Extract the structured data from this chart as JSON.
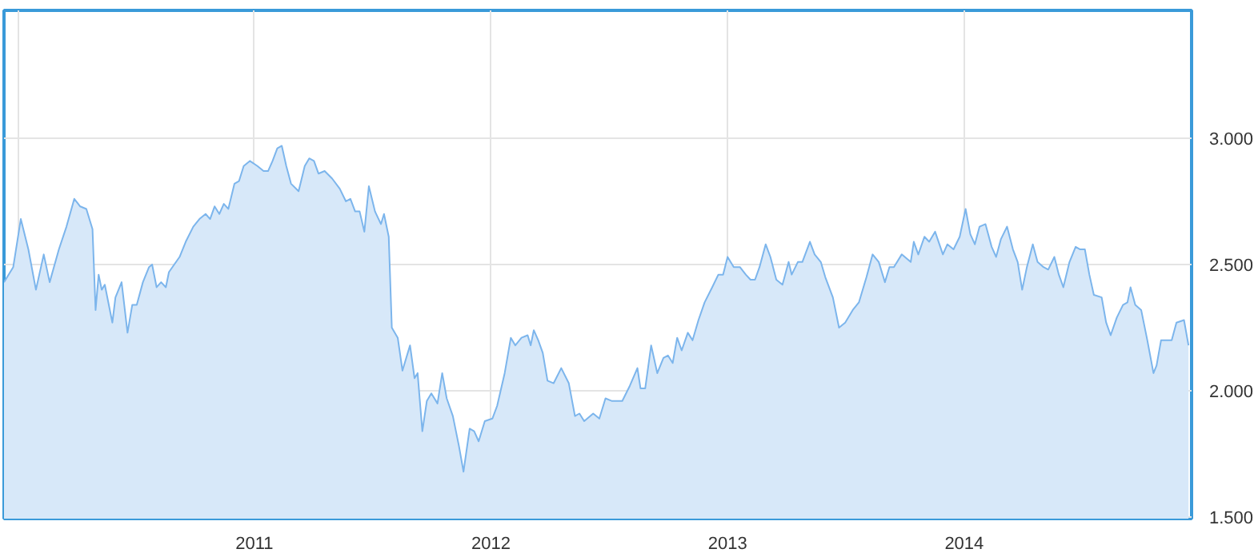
{
  "chart_data": {
    "type": "area",
    "x": [
      2009.942,
      2009.981,
      2010.013,
      2010.045,
      2010.077,
      2010.11,
      2010.135,
      2010.174,
      2010.206,
      2010.239,
      2010.264,
      2010.29,
      2010.316,
      2010.329,
      2010.342,
      2010.355,
      2010.368,
      2010.4,
      2010.413,
      2010.439,
      2010.464,
      2010.484,
      2010.503,
      2010.529,
      2010.555,
      2010.568,
      2010.587,
      2010.606,
      2010.626,
      2010.639,
      2010.684,
      2010.71,
      2010.742,
      2010.768,
      2010.794,
      2010.813,
      2010.832,
      2010.852,
      2010.871,
      2010.89,
      2010.916,
      2010.935,
      2010.955,
      2010.981,
      2011.013,
      2011.039,
      2011.058,
      2011.077,
      2011.097,
      2011.116,
      2011.135,
      2011.155,
      2011.187,
      2011.213,
      2011.232,
      2011.252,
      2011.271,
      2011.297,
      2011.329,
      2011.361,
      2011.387,
      2011.406,
      2011.426,
      2011.445,
      2011.465,
      2011.484,
      2011.51,
      2011.535,
      2011.548,
      2011.568,
      2011.581,
      2011.606,
      2011.626,
      2011.658,
      2011.677,
      2011.69,
      2011.71,
      2011.729,
      2011.748,
      2011.774,
      2011.794,
      2011.813,
      2011.839,
      2011.865,
      2011.884,
      2011.91,
      2011.929,
      2011.948,
      2011.974,
      2012.006,
      2012.026,
      2012.058,
      2012.084,
      2012.103,
      2012.129,
      2012.155,
      2012.168,
      2012.181,
      2012.2,
      2012.219,
      2012.239,
      2012.265,
      2012.297,
      2012.329,
      2012.355,
      2012.374,
      2012.394,
      2012.432,
      2012.458,
      2012.484,
      2012.51,
      2012.555,
      2012.587,
      2012.619,
      2012.632,
      2012.652,
      2012.677,
      2012.703,
      2012.729,
      2012.748,
      2012.768,
      2012.787,
      2012.806,
      2012.832,
      2012.852,
      2012.877,
      2012.903,
      2012.935,
      2012.961,
      2012.981,
      2013.0,
      2013.026,
      2013.052,
      2013.077,
      2013.097,
      2013.116,
      2013.135,
      2013.161,
      2013.181,
      2013.206,
      2013.232,
      2013.258,
      2013.271,
      2013.297,
      2013.316,
      2013.348,
      2013.368,
      2013.394,
      2013.413,
      2013.445,
      2013.471,
      2013.497,
      2013.529,
      2013.555,
      2013.587,
      2013.613,
      2013.639,
      2013.665,
      2013.684,
      2013.703,
      2013.736,
      2013.774,
      2013.787,
      2013.806,
      2013.832,
      2013.852,
      2013.877,
      2013.91,
      2013.929,
      2013.955,
      2013.981,
      2014.006,
      2014.026,
      2014.045,
      2014.065,
      2014.09,
      2014.116,
      2014.135,
      2014.155,
      2014.181,
      2014.206,
      2014.226,
      2014.245,
      2014.265,
      2014.29,
      2014.31,
      2014.335,
      2014.355,
      2014.381,
      2014.4,
      2014.419,
      2014.445,
      2014.471,
      2014.49,
      2014.51,
      2014.529,
      2014.548,
      2014.581,
      2014.6,
      2014.619,
      2014.645,
      2014.671,
      2014.69,
      2014.703,
      2014.723,
      2014.748,
      2014.774,
      2014.8,
      2014.813,
      2014.832,
      2014.858,
      2014.877,
      2014.897,
      2014.929,
      2014.948
    ],
    "series": [
      {
        "color": "#7cb5ec",
        "values": [
          2.43,
          2.49,
          2.68,
          2.56,
          2.4,
          2.54,
          2.43,
          2.56,
          2.65,
          2.76,
          2.73,
          2.72,
          2.64,
          2.32,
          2.46,
          2.4,
          2.42,
          2.27,
          2.37,
          2.43,
          2.23,
          2.34,
          2.34,
          2.43,
          2.49,
          2.5,
          2.41,
          2.43,
          2.41,
          2.47,
          2.53,
          2.59,
          2.65,
          2.68,
          2.7,
          2.68,
          2.73,
          2.7,
          2.74,
          2.72,
          2.82,
          2.83,
          2.89,
          2.91,
          2.89,
          2.87,
          2.87,
          2.91,
          2.96,
          2.97,
          2.89,
          2.82,
          2.79,
          2.89,
          2.92,
          2.91,
          2.86,
          2.87,
          2.84,
          2.8,
          2.75,
          2.76,
          2.71,
          2.71,
          2.63,
          2.81,
          2.71,
          2.66,
          2.7,
          2.61,
          2.25,
          2.21,
          2.08,
          2.18,
          2.05,
          2.07,
          1.84,
          1.96,
          1.99,
          1.95,
          2.07,
          1.97,
          1.9,
          1.78,
          1.68,
          1.85,
          1.84,
          1.8,
          1.88,
          1.89,
          1.94,
          2.07,
          2.21,
          2.18,
          2.21,
          2.22,
          2.18,
          2.24,
          2.2,
          2.15,
          2.04,
          2.03,
          2.09,
          2.03,
          1.9,
          1.91,
          1.88,
          1.91,
          1.89,
          1.97,
          1.96,
          1.96,
          2.02,
          2.09,
          2.01,
          2.01,
          2.18,
          2.07,
          2.13,
          2.14,
          2.11,
          2.21,
          2.16,
          2.23,
          2.2,
          2.28,
          2.35,
          2.41,
          2.46,
          2.46,
          2.53,
          2.49,
          2.49,
          2.46,
          2.44,
          2.44,
          2.49,
          2.58,
          2.53,
          2.44,
          2.42,
          2.51,
          2.46,
          2.51,
          2.51,
          2.59,
          2.54,
          2.51,
          2.45,
          2.37,
          2.25,
          2.27,
          2.32,
          2.35,
          2.45,
          2.54,
          2.51,
          2.43,
          2.49,
          2.49,
          2.54,
          2.51,
          2.59,
          2.54,
          2.61,
          2.59,
          2.63,
          2.54,
          2.58,
          2.56,
          2.61,
          2.72,
          2.62,
          2.58,
          2.65,
          2.66,
          2.57,
          2.53,
          2.6,
          2.65,
          2.56,
          2.51,
          2.4,
          2.49,
          2.58,
          2.51,
          2.49,
          2.48,
          2.53,
          2.46,
          2.41,
          2.51,
          2.57,
          2.56,
          2.56,
          2.46,
          2.38,
          2.37,
          2.27,
          2.22,
          2.29,
          2.34,
          2.35,
          2.41,
          2.34,
          2.32,
          2.2,
          2.07,
          2.1,
          2.2,
          2.2,
          2.2,
          2.27,
          2.28,
          2.18
        ]
      }
    ],
    "xlim": [
      2009.942,
      2014.961
    ],
    "ylim": [
      1.494,
      3.506
    ],
    "xticks": [
      {
        "value": 2010,
        "label": null
      },
      2011,
      2012,
      2013,
      2014
    ],
    "yticks": [
      {
        "value": 1.5,
        "label": "1.500"
      },
      {
        "value": 2.0,
        "label": "2.000"
      },
      {
        "value": 2.5,
        "label": "2.500"
      },
      {
        "value": 3.0,
        "label": "3.000"
      }
    ],
    "grid": true
  }
}
